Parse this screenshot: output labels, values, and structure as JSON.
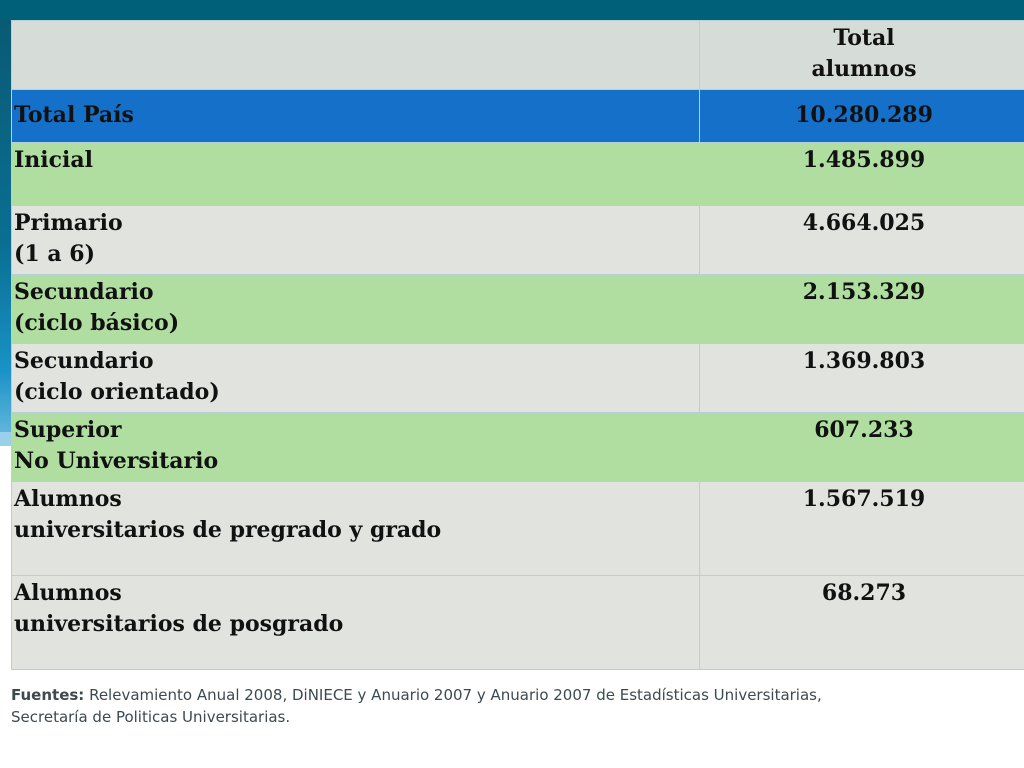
{
  "table": {
    "header": [
      "",
      [
        "Total",
        "alumnos"
      ]
    ],
    "rows": [
      {
        "label": [
          "Total País"
        ],
        "value": "10.280.289",
        "style": "total"
      },
      {
        "label": [
          "Inicial"
        ],
        "value": "1.485.899",
        "style": "green"
      },
      {
        "label": [
          "Primario",
          "(1 a 6)"
        ],
        "value": "4.664.025",
        "style": "gray"
      },
      {
        "label": [
          "Secundario",
          "(ciclo básico)"
        ],
        "value": "2.153.329",
        "style": "green"
      },
      {
        "label": [
          "Secundario",
          "(ciclo orientado)"
        ],
        "value": "1.369.803",
        "style": "gray"
      },
      {
        "label": [
          "Superior",
          "No Universitario"
        ],
        "value": "607.233",
        "style": "green"
      },
      {
        "label": [
          "Alumnos",
          "universitarios de pregrado y grado"
        ],
        "value": "1.567.519",
        "style": "gray"
      },
      {
        "label": [
          "Alumnos",
          "universitarios de posgrado"
        ],
        "value": "68.273",
        "style": "gray"
      }
    ]
  },
  "source": {
    "prefix": "Fuentes:",
    "text_line1": " Relevamiento Anual 2008, DiNIECE y Anuario 2007 y Anuario 2007 de Estadísticas Universitarias,",
    "text_line2": "Secretaría de Politicas Universitarias."
  },
  "colors": {
    "top_bar": "#006079",
    "total_row": "#1470c8",
    "green_row": "#b0dea0",
    "gray_row": "#e1e4de",
    "header_row": "#d6ddd8"
  }
}
